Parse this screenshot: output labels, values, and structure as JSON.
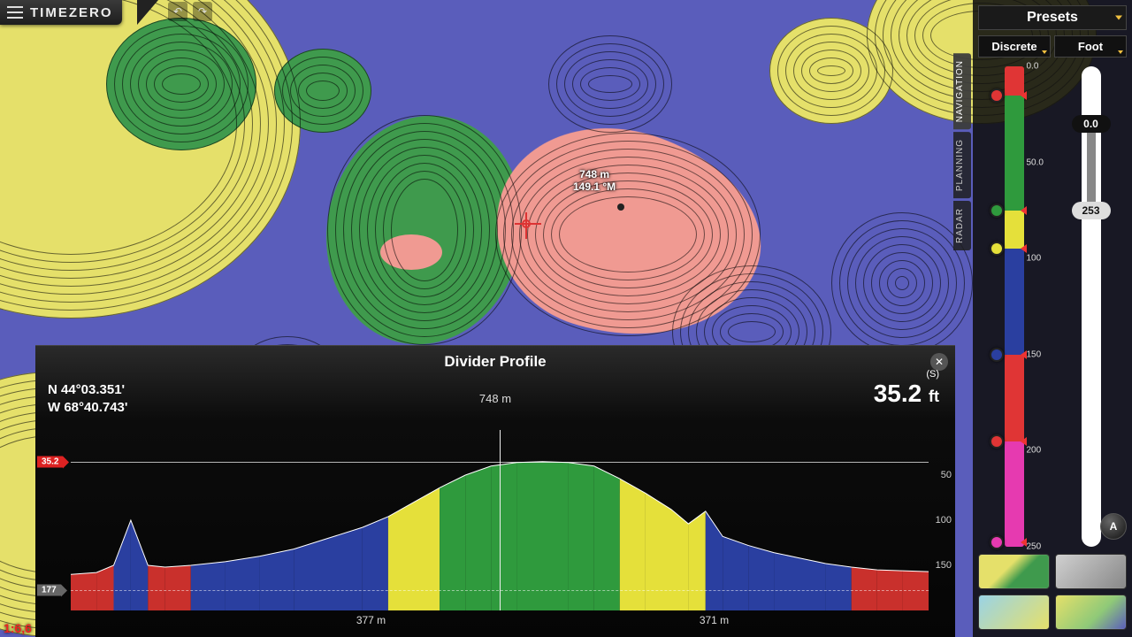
{
  "brand": "TIMEZERO",
  "map": {
    "cursor": {
      "distance": "748 m",
      "bearing": "149.1 °M"
    },
    "scale_label": "1:6,6",
    "side_tabs": [
      "NAVIGATION",
      "PLANNING",
      "RADAR"
    ],
    "active_tab_index": 0,
    "colors": {
      "deep": "#5a5dbb",
      "mid_yellow": "#e5e06a",
      "shallow_green": "#3f9a4d",
      "hazard_red": "#f09a92",
      "contour": "#000000"
    }
  },
  "toolbar": {
    "undo_title": "Undo",
    "redo_title": "Redo"
  },
  "right_panel": {
    "presets_label": "Presets",
    "mode_label": "Discrete",
    "unit_label": "Foot",
    "auto_label": "A",
    "color_scale": {
      "ticks": [
        "0.0",
        "50.0",
        "100",
        "150",
        "200",
        "250"
      ],
      "segments": [
        {
          "color": "#e03535",
          "pct": 6
        },
        {
          "color": "#2f9a3d",
          "pct": 24
        },
        {
          "color": "#e5e03a",
          "pct": 8
        },
        {
          "color": "#2a3fa0",
          "pct": 22
        },
        {
          "color": "#e03535",
          "pct": 18
        },
        {
          "color": "#e63ab0",
          "pct": 22
        }
      ],
      "dots": [
        {
          "color": "#e03535",
          "at": 6
        },
        {
          "color": "#2f9a3d",
          "at": 30
        },
        {
          "color": "#e5e03a",
          "at": 38
        },
        {
          "color": "#2a3fa0",
          "at": 60
        },
        {
          "color": "#e03535",
          "at": 78
        },
        {
          "color": "#e63ab0",
          "at": 99
        }
      ]
    },
    "range_slider": {
      "top_value": "0.0",
      "bottom_value": "253",
      "grey_from_pct": 12,
      "grey_to_pct": 30
    },
    "thumbnails": [
      "linear-gradient(135deg,#e5e06a 40%,#3f9a4d 60%)",
      "linear-gradient(135deg,#d0d0d0,#888)",
      "linear-gradient(135deg,#9ad3e6,#e5e06a)",
      "linear-gradient(135deg,#e5e06a,#8fc978 60%,#5a5dbb)"
    ]
  },
  "profile": {
    "title": "Divider Profile",
    "lat": "N 44°03.351'",
    "lon": "W 68°40.743'",
    "mid_distance": "748 m",
    "depth_value": "35.2",
    "depth_unit": "ft",
    "s_label": "(S)",
    "left_flag_top": "35.2",
    "left_flag_bottom": "177",
    "y_axis": {
      "min": 0,
      "max": 200,
      "ticks": [
        50,
        100,
        150
      ]
    },
    "x_labels": [
      {
        "text": "377 m",
        "pct": 35
      },
      {
        "text": "371 m",
        "pct": 75
      }
    ],
    "top_line_depth": 35.2,
    "bottom_line_depth": 177,
    "series": {
      "x_pct": [
        0,
        3,
        5,
        7,
        9,
        11,
        14,
        18,
        22,
        26,
        30,
        34,
        37,
        40,
        43,
        46,
        49,
        52,
        55,
        58,
        61,
        64,
        67,
        70,
        72,
        74,
        76,
        79,
        82,
        85,
        88,
        91,
        94,
        97,
        100
      ],
      "depth": [
        160,
        158,
        150,
        100,
        150,
        152,
        150,
        146,
        140,
        132,
        120,
        108,
        96,
        80,
        64,
        50,
        40,
        36,
        35,
        36,
        40,
        54,
        70,
        88,
        104,
        90,
        118,
        128,
        136,
        142,
        148,
        152,
        155,
        156,
        157
      ],
      "thresholds": {
        "green_max": 60,
        "yellow_max": 100,
        "blue_max": 150
      },
      "colors": {
        "green": "#2f9a3d",
        "yellow": "#e5e03a",
        "blue": "#2a3fa0",
        "red": "#c9302c"
      }
    }
  }
}
